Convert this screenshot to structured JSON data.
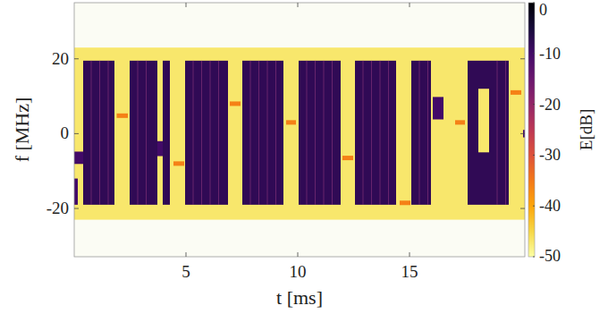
{
  "chart_data": {
    "type": "spectrogram",
    "x_label": "t [ms]",
    "y_label": "f [MHz]",
    "xlim": [
      0,
      20.16
    ],
    "ylim": [
      -32.9,
      35
    ],
    "xticks": [
      5,
      10,
      15
    ],
    "yticks": [
      -20,
      0,
      20
    ],
    "colorbar": {
      "label": "E[dB]",
      "range": [
        -50,
        0
      ],
      "ticks": [
        0,
        -10,
        -20,
        -30,
        -40,
        -50
      ]
    },
    "noise_floor": {
      "f": [
        -23,
        23
      ],
      "energy": -47
    },
    "bursts": [
      {
        "t": [
          0.4,
          1.8
        ],
        "f": [
          -19,
          19.5
        ],
        "energy": -8
      },
      {
        "t": [
          0,
          0.4
        ],
        "f": [
          -8.1,
          -4.8
        ],
        "energy": -10
      },
      {
        "t": [
          0,
          0.16
        ],
        "f": [
          -19,
          -12
        ],
        "energy": -10
      },
      {
        "t": [
          1.9,
          2.4
        ],
        "f": [
          4.2,
          5.4
        ],
        "energy": -36
      },
      {
        "t": [
          2.48,
          3.72
        ],
        "f": [
          -19,
          19.5
        ],
        "energy": -8
      },
      {
        "t": [
          3.72,
          3.96
        ],
        "f": [
          -6,
          -2
        ],
        "energy": -10
      },
      {
        "t": [
          3.96,
          4.28
        ],
        "f": [
          -19,
          19.5
        ],
        "energy": -8
      },
      {
        "t": [
          4.44,
          4.92
        ],
        "f": [
          -8.6,
          -7.4
        ],
        "energy": -36
      },
      {
        "t": [
          4.96,
          6.88
        ],
        "f": [
          -19,
          19.5
        ],
        "energy": -8
      },
      {
        "t": [
          6.96,
          7.44
        ],
        "f": [
          7.4,
          8.6
        ],
        "energy": -36
      },
      {
        "t": [
          7.52,
          9.36
        ],
        "f": [
          -19,
          19.5
        ],
        "energy": -8
      },
      {
        "t": [
          9.48,
          9.92
        ],
        "f": [
          2.4,
          3.6
        ],
        "energy": -36
      },
      {
        "t": [
          10.04,
          11.92
        ],
        "f": [
          -19,
          19.5
        ],
        "energy": -8
      },
      {
        "t": [
          12.0,
          12.48
        ],
        "f": [
          -7.1,
          -5.9
        ],
        "energy": -36
      },
      {
        "t": [
          12.56,
          14.4
        ],
        "f": [
          -19,
          19.5
        ],
        "energy": -8
      },
      {
        "t": [
          14.56,
          15.04
        ],
        "f": [
          -19.1,
          -17.9
        ],
        "energy": -36
      },
      {
        "t": [
          15.08,
          15.96
        ],
        "f": [
          -19,
          19.5
        ],
        "energy": -8
      },
      {
        "t": [
          16.04,
          16.52
        ],
        "f": [
          3.8,
          9.8
        ],
        "energy": -10
      },
      {
        "t": [
          17.04,
          17.48
        ],
        "f": [
          2.4,
          3.6
        ],
        "energy": -36
      },
      {
        "t": [
          17.6,
          18.08
        ],
        "f": [
          -19,
          19.5
        ],
        "energy": -8
      },
      {
        "t": [
          18.08,
          18.56
        ],
        "f": [
          -19,
          -5
        ],
        "energy": -8
      },
      {
        "t": [
          18.08,
          18.56
        ],
        "f": [
          12,
          19.5
        ],
        "energy": -8
      },
      {
        "t": [
          18.56,
          19.44
        ],
        "f": [
          -19,
          19.5
        ],
        "energy": -8
      },
      {
        "t": [
          19.52,
          20.0
        ],
        "f": [
          10.4,
          11.6
        ],
        "energy": -36
      },
      {
        "t": [
          20.08,
          20.16
        ],
        "f": [
          -1,
          1
        ],
        "energy": -10
      }
    ]
  }
}
